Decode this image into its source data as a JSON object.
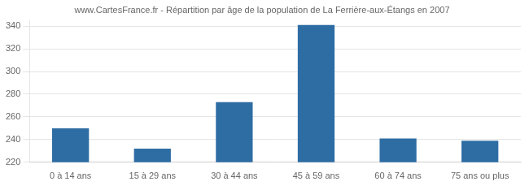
{
  "chart_data": {
    "type": "bar",
    "title": "www.CartesFrance.fr - Répartition par âge de la population de La Ferrière-aux-Étangs en 2007",
    "categories": [
      "0 à 14 ans",
      "15 à 29 ans",
      "30 à 44 ans",
      "45 à 59 ans",
      "60 à 74 ans",
      "75 ans ou plus"
    ],
    "values": [
      250,
      232,
      273,
      341,
      241,
      239
    ],
    "color": "#2e6da4",
    "ylim": [
      220,
      345
    ],
    "yticks": [
      220,
      240,
      260,
      280,
      300,
      320,
      340
    ],
    "grid": true
  }
}
